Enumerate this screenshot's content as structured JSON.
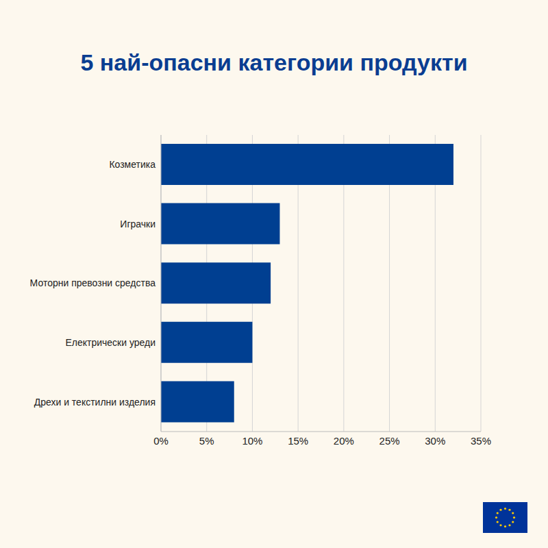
{
  "chart_data": {
    "type": "bar",
    "title": "5 най-опасни категории продукти",
    "orientation": "horizontal",
    "categories": [
      "Козметика",
      "Играчки",
      "Моторни превозни средства",
      "Електрически уреди",
      "Дрехи и текстилни изделия"
    ],
    "values": [
      32,
      13,
      12,
      10,
      8
    ],
    "color": "#003f91",
    "xlim": [
      0,
      35
    ],
    "xticks": [
      {
        "value": 0,
        "label": "0%"
      },
      {
        "value": 5,
        "label": "5%"
      },
      {
        "value": 10,
        "label": "10%"
      },
      {
        "value": 15,
        "label": "15%"
      },
      {
        "value": 20,
        "label": "20%"
      },
      {
        "value": 25,
        "label": "25%"
      },
      {
        "value": 30,
        "label": "30%"
      },
      {
        "value": 35,
        "label": "35%"
      }
    ],
    "grid": true
  }
}
